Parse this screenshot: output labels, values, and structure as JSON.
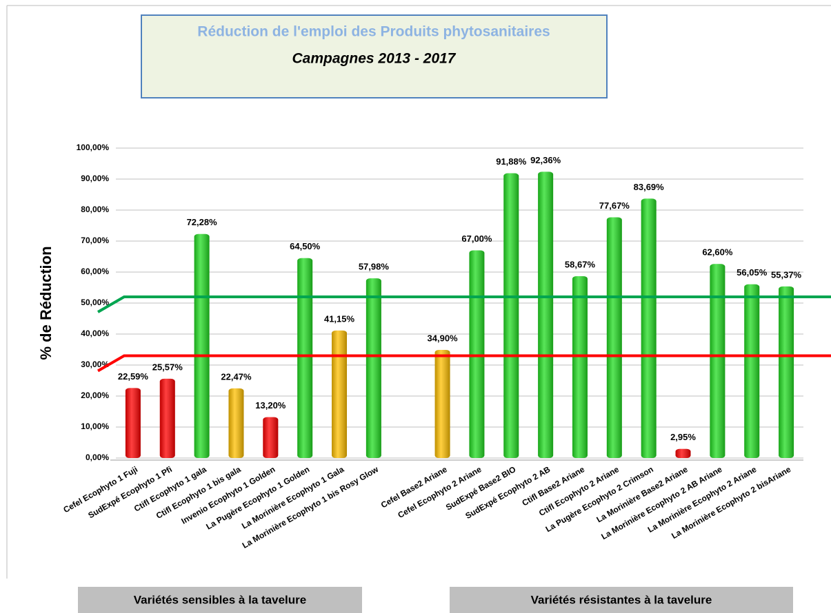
{
  "chart_data": {
    "type": "bar",
    "title": "Réduction de l'emploi des Produits  phytosanitaires",
    "subtitle": "Campagnes 2013 - 2017",
    "y_label": "% de Réduction",
    "group_labels": [
      "Variétés sensibles à la tavelure",
      "Variétés résistantes à la tavelure"
    ],
    "categories": [
      "Cefel Ecophyto 1 Fuji",
      "SudExpé Ecophyto 1 Pfi",
      "Ctifl Ecophyto 1 gala",
      "Ctifl Ecophyto 1 bis gala",
      "Invenio Ecophyto 1 Golden",
      "La Pugère Ecophyto 1 Golden",
      "La Morinière Ecophyto 1 Gala",
      "La Morinière Ecophyto 1 bis Rosy Glow",
      null,
      "Cefel  Base2 Ariane",
      "Cefel Ecophyto 2 Ariane",
      "SudExpé  Base2 BIO",
      "SudExpé Ecophyto 2 AB",
      "Ctifl  Base2  Ariane",
      "Ctifl Ecophyto 2 Ariane",
      "La Pugère Ecophyto 2 Crimson",
      "La Morinière Base2 Ariane",
      "La Morinière Ecophyto 2 AB Ariane",
      "La Morinière Ecophyto 2 Ariane",
      "La Morinière Ecophyto 2 bisAriane"
    ],
    "values": [
      22.59,
      25.57,
      72.28,
      22.47,
      13.2,
      64.5,
      41.15,
      57.98,
      null,
      34.9,
      67.0,
      91.88,
      92.36,
      58.67,
      77.67,
      83.69,
      2.95,
      62.6,
      56.05,
      55.37
    ],
    "value_labels": [
      "22,59%",
      "25,57%",
      "72,28%",
      "22,47%",
      "13,20%",
      "64,50%",
      "41,15%",
      "57,98%",
      null,
      "34,90%",
      "67,00%",
      "91,88%",
      "92,36%",
      "58,67%",
      "77,67%",
      "83,69%",
      "2,95%",
      "62,60%",
      "56,05%",
      "55,37%"
    ],
    "colors": [
      "#ff0000",
      "#ff0000",
      "#22dd22",
      "#ffc000",
      "#ff0000",
      "#22dd22",
      "#ffc000",
      "#22dd22",
      null,
      "#ffc000",
      "#22dd22",
      "#22dd22",
      "#22dd22",
      "#22dd22",
      "#22dd22",
      "#22dd22",
      "#ff0000",
      "#22dd22",
      "#22dd22",
      "#22dd22"
    ],
    "ylim": [
      0,
      100
    ],
    "yticks": [
      {
        "value": 0,
        "label": "0,00%"
      },
      {
        "value": 10,
        "label": "10,00%"
      },
      {
        "value": 20,
        "label": "20,00%"
      },
      {
        "value": 30,
        "label": "30,00%"
      },
      {
        "value": 40,
        "label": "40,00%"
      },
      {
        "value": 50,
        "label": "50,00%"
      },
      {
        "value": 60,
        "label": "60,00%"
      },
      {
        "value": 70,
        "label": "70,00%"
      },
      {
        "value": 80,
        "label": "80,00%"
      },
      {
        "value": 90,
        "label": "90,00%"
      },
      {
        "value": 100,
        "label": "100,00%"
      }
    ],
    "grid": true,
    "reference_lines": [
      {
        "value": 52,
        "color": "#00a550"
      },
      {
        "value": 33,
        "color": "#ff0000"
      }
    ]
  }
}
